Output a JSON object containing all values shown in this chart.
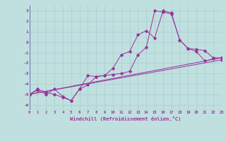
{
  "bg_color": "#c0e0e0",
  "line_color": "#993399",
  "xlabel": "Windchill (Refroidissement éolien,°C)",
  "xlim": [
    0,
    23
  ],
  "ylim": [
    -6.5,
    3.5
  ],
  "yticks": [
    -6,
    -5,
    -4,
    -3,
    -2,
    -1,
    0,
    1,
    2,
    3
  ],
  "xticks": [
    0,
    1,
    2,
    3,
    4,
    5,
    6,
    7,
    8,
    9,
    10,
    11,
    12,
    13,
    14,
    15,
    16,
    17,
    18,
    19,
    20,
    21,
    22,
    23
  ],
  "curve1_x": [
    0,
    1,
    2,
    3,
    4,
    5,
    6,
    7,
    8,
    9,
    10,
    11,
    12,
    13,
    14,
    15,
    16,
    17,
    18,
    19,
    20,
    21,
    22,
    23
  ],
  "curve1_y": [
    -5.0,
    -4.5,
    -4.8,
    -5.0,
    -5.3,
    -5.6,
    -4.5,
    -4.1,
    -3.3,
    -3.2,
    -3.1,
    -3.0,
    -2.8,
    -1.2,
    -0.5,
    3.0,
    2.9,
    2.7,
    0.2,
    -0.6,
    -0.7,
    -0.8,
    -1.5,
    -1.5
  ],
  "curve2_x": [
    0,
    1,
    2,
    3,
    4,
    5,
    6,
    7,
    8,
    9,
    10,
    11,
    12,
    13,
    14,
    15,
    16,
    17,
    18,
    19,
    20,
    21,
    22,
    23
  ],
  "curve2_y": [
    -5.0,
    -4.6,
    -5.0,
    -4.5,
    -5.2,
    -5.6,
    -4.5,
    -3.2,
    -3.3,
    -3.2,
    -2.5,
    -1.2,
    -0.9,
    0.7,
    1.1,
    0.4,
    3.0,
    2.8,
    0.2,
    -0.6,
    -0.9,
    -1.8,
    -1.6,
    -1.5
  ],
  "line1_x": [
    0,
    23
  ],
  "line1_y": [
    -5.0,
    -1.7
  ],
  "line2_x": [
    0,
    23
  ],
  "line2_y": [
    -5.0,
    -1.5
  ],
  "grid_color": "#aacccc",
  "axis_line_color": "#7777aa"
}
